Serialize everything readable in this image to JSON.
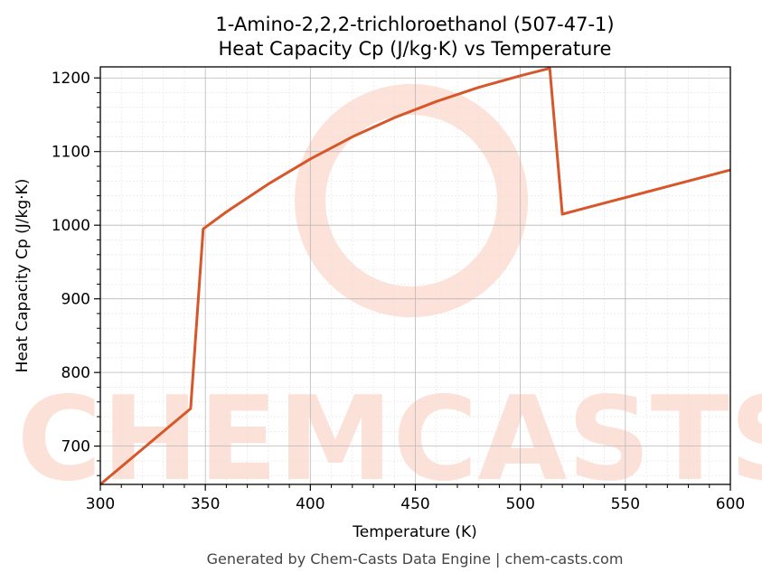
{
  "chart_data": {
    "type": "line",
    "title": "1-Amino-2,2,2-trichloroethanol (507-47-1)",
    "subtitle": "Heat Capacity Cp (J/kg·K) vs Temperature",
    "xlabel": "Temperature (K)",
    "ylabel": "Heat Capacity Cp (J/kg·K)",
    "xlim": [
      300,
      600
    ],
    "ylim": [
      648,
      1215
    ],
    "x_ticks": [
      300,
      350,
      400,
      450,
      500,
      550,
      600
    ],
    "y_ticks": [
      700,
      800,
      900,
      1000,
      1100,
      1200
    ],
    "grid": true,
    "series": [
      {
        "color": "#d5572a",
        "points": [
          [
            300,
            648
          ],
          [
            343,
            751
          ],
          [
            349,
            995
          ],
          [
            360,
            1018
          ],
          [
            380,
            1056
          ],
          [
            400,
            1090
          ],
          [
            420,
            1120
          ],
          [
            440,
            1146
          ],
          [
            460,
            1168
          ],
          [
            480,
            1187
          ],
          [
            500,
            1203
          ],
          [
            514,
            1213
          ],
          [
            520,
            1015
          ],
          [
            540,
            1030
          ],
          [
            560,
            1045
          ],
          [
            580,
            1060
          ],
          [
            600,
            1075
          ]
        ]
      }
    ]
  },
  "watermark": {
    "text": "CHEMCASTS",
    "color": "#fbd8cc"
  },
  "footer": "Generated by Chem-Casts Data Engine | chem-casts.com"
}
